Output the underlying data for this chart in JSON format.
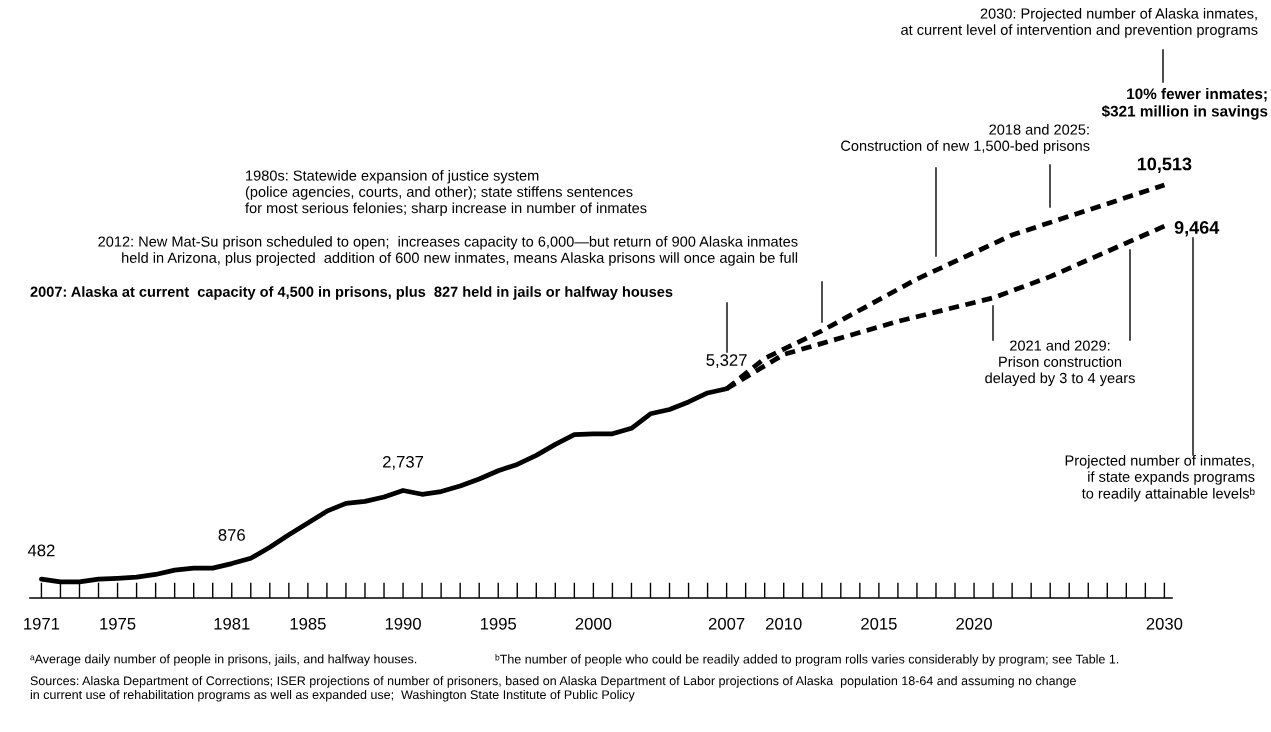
{
  "chart_data": {
    "type": "line",
    "series": [
      {
        "x": [
          1971,
          1972,
          1973,
          1974,
          1975,
          1976,
          1977,
          1978,
          1979,
          1980,
          1981,
          1982,
          1983,
          1984,
          1985,
          1986,
          1987,
          1988,
          1989,
          1990,
          1991,
          1992,
          1993,
          1994,
          1995,
          1996,
          1997,
          1998,
          1999,
          2000,
          2001,
          2002,
          2003,
          2004,
          2005,
          2006,
          2007
        ],
        "values": [
          482,
          410,
          410,
          480,
          500,
          530,
          600,
          710,
          760,
          760,
          876,
          1010,
          1290,
          1610,
          1910,
          2210,
          2410,
          2460,
          2570,
          2737,
          2640,
          2710,
          2850,
          3030,
          3240,
          3400,
          3630,
          3910,
          4160,
          4180,
          4180,
          4320,
          4690,
          4800,
          4990,
          5220,
          5327
        ],
        "color": "#000000",
        "line_style": "solid",
        "value_labels": [
          "482",
          null,
          null,
          null,
          null,
          null,
          null,
          null,
          null,
          null,
          "876",
          null,
          null,
          null,
          null,
          null,
          null,
          null,
          null,
          "2,737",
          null,
          null,
          null,
          null,
          null,
          null,
          null,
          null,
          null,
          null,
          null,
          null,
          null,
          null,
          null,
          null,
          "5,327"
        ]
      },
      {
        "x": [
          2007,
          2009,
          2012,
          2017,
          2022,
          2030
        ],
        "values": [
          5327,
          6100,
          6800,
          8120,
          9240,
          10513
        ],
        "color": "#000000",
        "line_style": "dashed",
        "value_labels": [
          null,
          null,
          null,
          null,
          null,
          "10,513"
        ]
      },
      {
        "x": [
          2007,
          2010,
          2016,
          2021,
          2024,
          2030
        ],
        "values": [
          5327,
          6200,
          7040,
          7640,
          8180,
          9464
        ],
        "color": "#000000",
        "line_style": "dashed",
        "value_labels": [
          null,
          null,
          null,
          null,
          null,
          "9,464"
        ]
      }
    ],
    "xlim": [
      1970.4,
      2030.4
    ],
    "xticks": [
      1971,
      {
        "value": 1972,
        "label": null
      },
      {
        "value": 1973,
        "label": null
      },
      {
        "value": 1974,
        "label": null
      },
      1975,
      {
        "value": 1976,
        "label": null
      },
      {
        "value": 1977,
        "label": null
      },
      {
        "value": 1978,
        "label": null
      },
      {
        "value": 1979,
        "label": null
      },
      {
        "value": 1980,
        "label": null
      },
      1981,
      {
        "value": 1982,
        "label": null
      },
      {
        "value": 1983,
        "label": null
      },
      {
        "value": 1984,
        "label": null
      },
      1985,
      {
        "value": 1986,
        "label": null
      },
      {
        "value": 1987,
        "label": null
      },
      {
        "value": 1988,
        "label": null
      },
      {
        "value": 1989,
        "label": null
      },
      1990,
      {
        "value": 1991,
        "label": null
      },
      {
        "value": 1992,
        "label": null
      },
      {
        "value": 1993,
        "label": null
      },
      {
        "value": 1994,
        "label": null
      },
      1995,
      {
        "value": 1996,
        "label": null
      },
      {
        "value": 1997,
        "label": null
      },
      {
        "value": 1998,
        "label": null
      },
      {
        "value": 1999,
        "label": null
      },
      2000,
      {
        "value": 2001,
        "label": null
      },
      {
        "value": 2002,
        "label": null
      },
      {
        "value": 2003,
        "label": null
      },
      {
        "value": 2004,
        "label": null
      },
      {
        "value": 2005,
        "label": null
      },
      {
        "value": 2006,
        "label": null
      },
      2007,
      {
        "value": 2008,
        "label": null
      },
      {
        "value": 2009,
        "label": null
      },
      2010,
      {
        "value": 2011,
        "label": null
      },
      {
        "value": 2012,
        "label": null
      },
      {
        "value": 2013,
        "label": null
      },
      {
        "value": 2014,
        "label": null
      },
      2015,
      {
        "value": 2016,
        "label": null
      },
      {
        "value": 2017,
        "label": null
      },
      {
        "value": 2018,
        "label": null
      },
      {
        "value": 2019,
        "label": null
      },
      2020,
      {
        "value": 2021,
        "label": null
      },
      {
        "value": 2022,
        "label": null
      },
      {
        "value": 2023,
        "label": null
      },
      {
        "value": 2024,
        "label": null
      },
      {
        "value": 2025,
        "label": null
      },
      {
        "value": 2026,
        "label": null
      },
      {
        "value": 2027,
        "label": null
      },
      {
        "value": 2028,
        "label": null
      },
      {
        "value": 2029,
        "label": null
      },
      2030
    ],
    "tick_labels": "x",
    "annotations": [
      "1980s: Statewide expansion of justice system\n(police agencies, courts, and other); state stiffens sentences\nfor most serious felonies; sharp increase in number of inmates",
      "2007: Alaska at current  capacity of 4,500 in prisons, plus  827 held in jails or halfway houses",
      "2012: New Mat-Su prison scheduled to open;  increases capacity to 6,000—but return of 900 Alaska inmates\nheld in Arizona, plus projected  addition of 600 new inmates, means Alaska prisons will once again be full",
      "2018 and 2025:\nConstruction of new 1,500-bed prisons",
      "2030: Projected number of Alaska inmates,\nat current level of intervention and prevention programs",
      "10% fewer inmates;\n$321 million in savings",
      "2021 and 2029:\nPrison construction\ndelayed by 3 to 4 years",
      "Projected number of inmates,\nif state expands programs\nto readily attainable levelsᵇ",
      "ᵃAverage daily number of people in prisons, jails, and halfway houses.",
      "ᵇThe number of people who could be readily added to program rolls varies considerably by program; see Table 1.",
      "Sources: Alaska Department of Corrections; ISER projections of number of prisoners, based on Alaska Department of Labor projections of Alaska  population 18-64 and assuming no change\nin current use of rehabilitation programs as well as expanded use;  Washington State Institute of Public Policy"
    ]
  }
}
